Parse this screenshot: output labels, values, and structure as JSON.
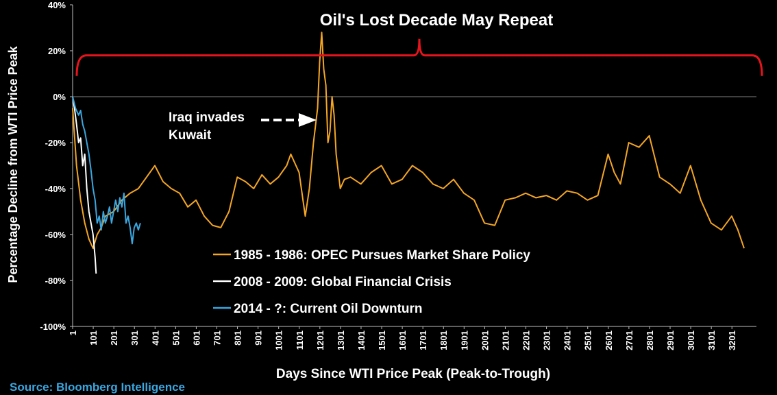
{
  "chart_data": {
    "type": "line",
    "title": "Oil's Lost Decade May Repeat",
    "xlabel": "Days Since WTI Price Peak (Peak-to-Trough)",
    "ylabel": "Percentage Decline from WTI Price Peak",
    "source": "Source: Bloomberg Intelligence",
    "xlim": [
      1,
      3320
    ],
    "ylim": [
      -100,
      40
    ],
    "x_tick_labels": [
      "1",
      "101",
      "201",
      "301",
      "401",
      "501",
      "601",
      "701",
      "801",
      "901",
      "1001",
      "1101",
      "1201",
      "1301",
      "1401",
      "1501",
      "1601",
      "1701",
      "1801",
      "1901",
      "2001",
      "2101",
      "2201",
      "2301",
      "2401",
      "2501",
      "2601",
      "2701",
      "2801",
      "2901",
      "3001",
      "3101",
      "3201"
    ],
    "y_tick_labels": [
      "40%",
      "20%",
      "0%",
      "-20%",
      "-40%",
      "-60%",
      "-80%",
      "-100%"
    ],
    "annotation": {
      "lines": [
        "Iraq invades",
        "Kuwait"
      ],
      "x": 1210,
      "y": -10
    },
    "bracket": {
      "x_start": 1,
      "x_end": 3320,
      "y": 18,
      "color": "#e8141c"
    },
    "zero_line_color": "#808080",
    "legend_placement": "bottom-center",
    "series": [
      {
        "name": "1985 - 1986: OPEC Pursues Market Share Policy",
        "color": "#f5a623",
        "x": [
          1,
          20,
          40,
          60,
          80,
          100,
          120,
          140,
          160,
          200,
          240,
          280,
          320,
          360,
          400,
          440,
          480,
          520,
          560,
          600,
          640,
          680,
          720,
          760,
          800,
          840,
          880,
          920,
          960,
          1000,
          1040,
          1060,
          1100,
          1130,
          1150,
          1170,
          1190,
          1200,
          1210,
          1220,
          1230,
          1240,
          1250,
          1260,
          1270,
          1280,
          1300,
          1320,
          1350,
          1400,
          1450,
          1500,
          1550,
          1600,
          1650,
          1700,
          1750,
          1800,
          1850,
          1900,
          1950,
          2000,
          2050,
          2100,
          2150,
          2200,
          2250,
          2300,
          2350,
          2400,
          2450,
          2500,
          2550,
          2600,
          2630,
          2660,
          2700,
          2750,
          2800,
          2850,
          2900,
          2950,
          3000,
          3050,
          3100,
          3150,
          3200,
          3230,
          3260
        ],
        "y": [
          -5,
          -30,
          -45,
          -55,
          -62,
          -66,
          -60,
          -57,
          -52,
          -50,
          -45,
          -42,
          -40,
          -35,
          -30,
          -37,
          -40,
          -42,
          -48,
          -45,
          -52,
          -56,
          -57,
          -50,
          -35,
          -37,
          -40,
          -34,
          -38,
          -35,
          -30,
          -25,
          -33,
          -52,
          -40,
          -20,
          -5,
          15,
          28,
          12,
          5,
          -20,
          -15,
          0,
          -8,
          -25,
          -40,
          -36,
          -35,
          -38,
          -33,
          -30,
          -38,
          -36,
          -30,
          -33,
          -38,
          -40,
          -36,
          -42,
          -45,
          -55,
          -56,
          -45,
          -44,
          -42,
          -44,
          -43,
          -45,
          -41,
          -42,
          -45,
          -43,
          -25,
          -33,
          -38,
          -20,
          -22,
          -17,
          -35,
          -38,
          -42,
          -30,
          -45,
          -55,
          -58,
          -52,
          -58,
          -66
        ]
      },
      {
        "name": "2008 - 2009: Global Financial Crisis",
        "color": "#ffffff",
        "x": [
          1,
          10,
          20,
          30,
          40,
          50,
          60,
          70,
          80,
          90,
          100,
          110,
          115
        ],
        "y": [
          0,
          -5,
          -12,
          -20,
          -18,
          -30,
          -25,
          -40,
          -50,
          -55,
          -60,
          -70,
          -77
        ]
      },
      {
        "name": "2014 - ?: Current Oil Downturn",
        "color": "#3aa7e0",
        "x": [
          1,
          15,
          30,
          40,
          50,
          60,
          70,
          80,
          90,
          100,
          110,
          120,
          130,
          140,
          150,
          160,
          170,
          180,
          190,
          200,
          210,
          220,
          230,
          240,
          250,
          260,
          270,
          280,
          290,
          300,
          310,
          320,
          330
        ],
        "y": [
          0,
          -5,
          -8,
          -6,
          -12,
          -15,
          -20,
          -25,
          -32,
          -40,
          -45,
          -55,
          -52,
          -58,
          -50,
          -55,
          -52,
          -48,
          -55,
          -50,
          -45,
          -50,
          -44,
          -48,
          -42,
          -55,
          -52,
          -57,
          -64,
          -57,
          -55,
          -58,
          -55
        ]
      }
    ]
  }
}
